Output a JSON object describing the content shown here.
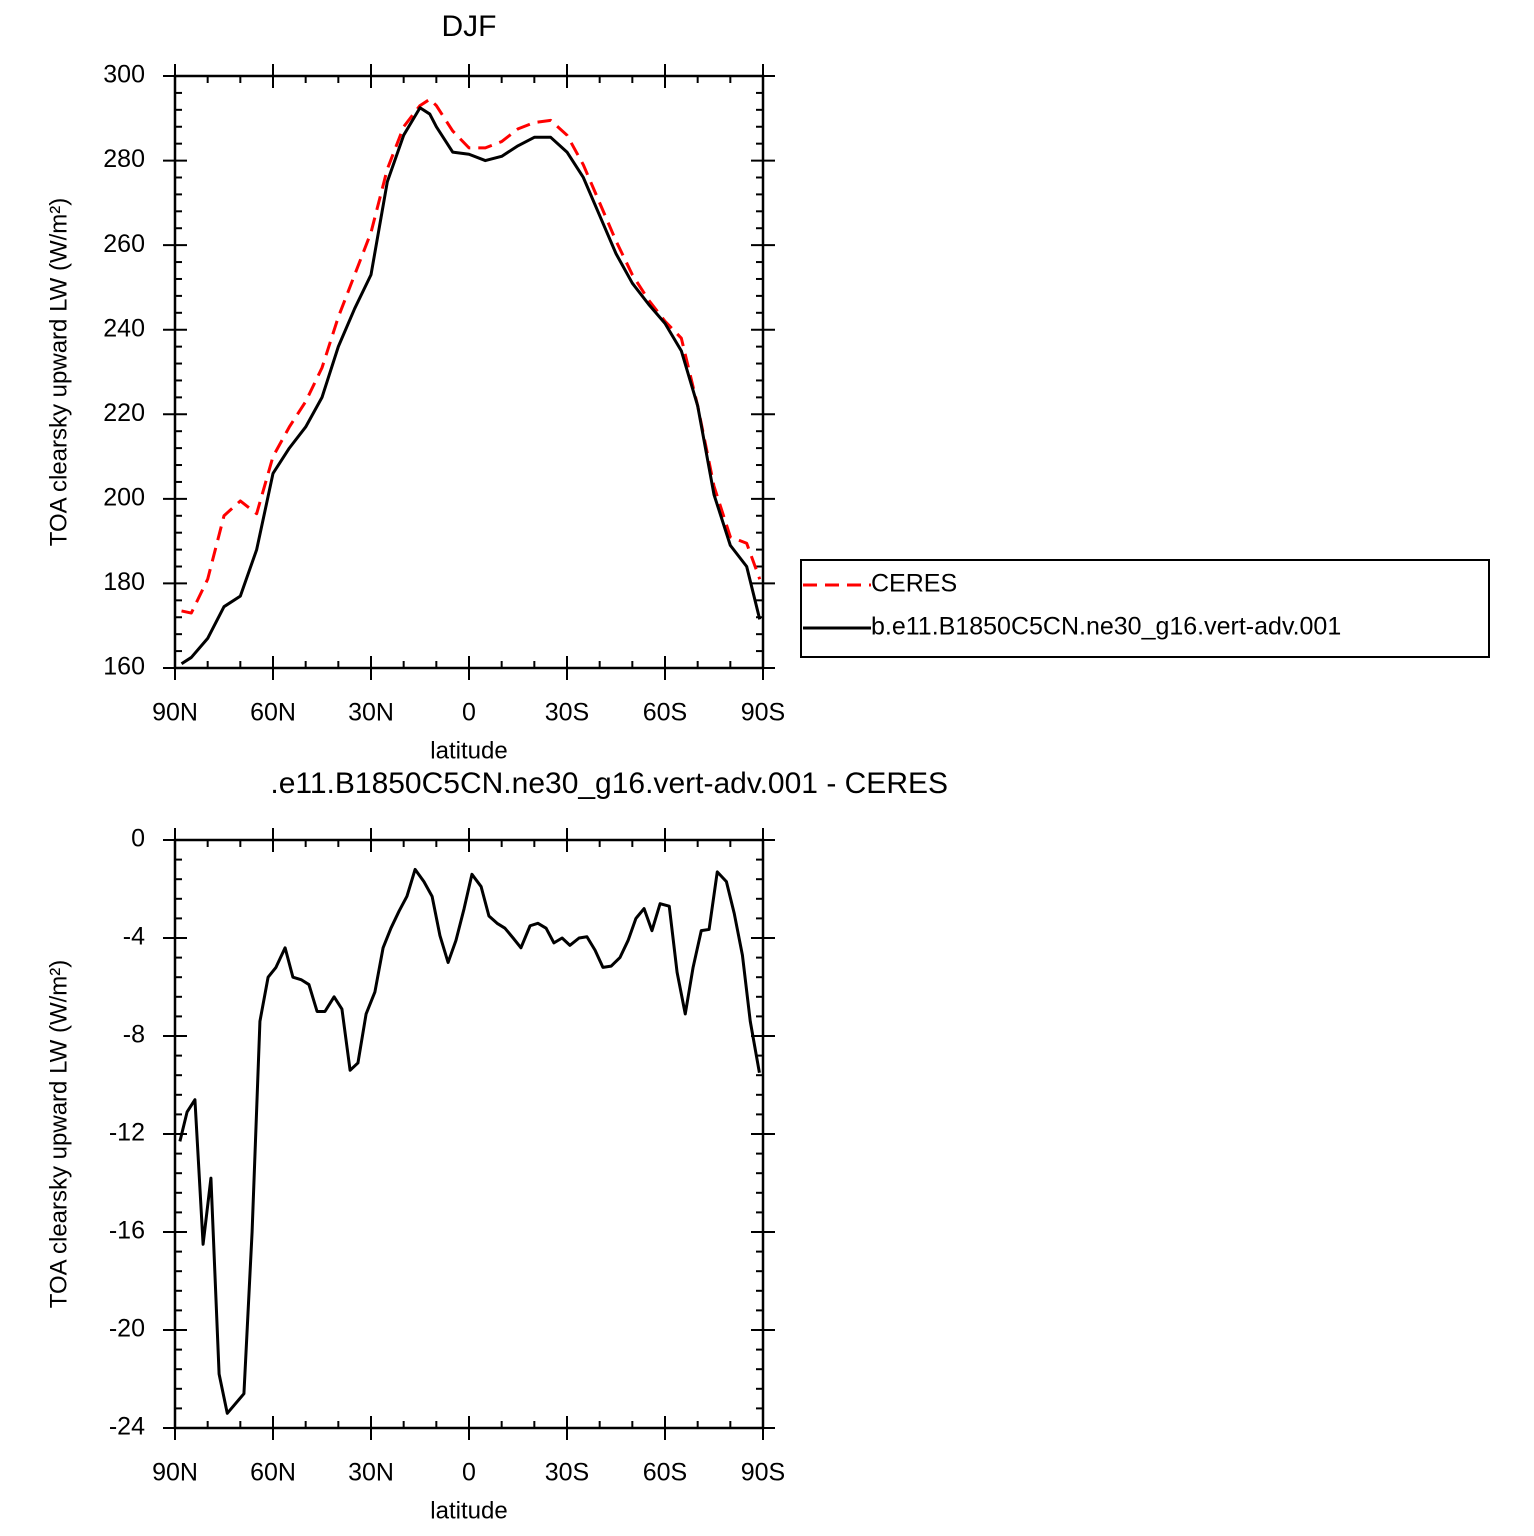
{
  "chart_data": [
    {
      "type": "line",
      "title": "DJF",
      "x_label": "latitude",
      "y_label": "TOA clearsky upward LW (W/m²)",
      "x": [
        88,
        85,
        80,
        75,
        70,
        65,
        60,
        55,
        50,
        45,
        40,
        35,
        30,
        25,
        20,
        15,
        12,
        10,
        5,
        0,
        -5,
        -10,
        -15,
        -20,
        -25,
        -30,
        -35,
        -40,
        -45,
        -50,
        -55,
        -60,
        -65,
        -70,
        -75,
        -80,
        -85,
        -89
      ],
      "series": [
        {
          "name": "CERES",
          "color": "#ff0000",
          "linestyle": "dashed",
          "values": [
            173.5,
            173,
            181,
            196,
            199.5,
            196.5,
            210,
            217,
            223,
            231,
            243,
            253,
            263,
            278,
            288,
            293,
            294.5,
            293,
            287,
            283,
            283,
            284.5,
            287.5,
            289,
            289.5,
            286,
            279,
            270,
            261,
            253,
            247,
            242,
            238,
            222,
            203,
            191,
            189.5,
            181
          ]
        },
        {
          "name": "b.e11.B1850C5CN.ne30_g16.vert-adv.001",
          "color": "#000000",
          "linestyle": "solid",
          "values": [
            161,
            162.5,
            167,
            174.5,
            177,
            188,
            206,
            212,
            217,
            224,
            236,
            245,
            253,
            275,
            286,
            292.5,
            291,
            288,
            282,
            281.5,
            280,
            281,
            283.5,
            285.5,
            285.5,
            282,
            276,
            267,
            258,
            251,
            246,
            241.5,
            235,
            222,
            201,
            189,
            184,
            171.5
          ]
        }
      ],
      "xlim": [
        90,
        -90
      ],
      "xticks": [
        {
          "value": 90,
          "label": "90N"
        },
        {
          "value": 60,
          "label": "60N"
        },
        {
          "value": 30,
          "label": "30N"
        },
        0,
        {
          "value": -30,
          "label": "30S"
        },
        {
          "value": -60,
          "label": "60S"
        },
        {
          "value": -90,
          "label": "90S"
        }
      ],
      "ylim": [
        160,
        300
      ],
      "yticks": [
        160,
        180,
        200,
        220,
        240,
        260,
        280,
        300
      ],
      "legend": "right",
      "grid": false
    },
    {
      "type": "line",
      "title": ".e11.B1850C5CN.ne30_g16.vert-adv.001 - CERES",
      "x_label": "latitude",
      "y_label": "TOA clearsky upward LW (W/m²)",
      "x": [
        88.5,
        86.3,
        83.9,
        81.4,
        79,
        76.5,
        74,
        68.9,
        66.4,
        64,
        61.5,
        59.1,
        56.3,
        53.9,
        51.4,
        49,
        46.5,
        44.1,
        41.3,
        38.9,
        36.4,
        34,
        31.5,
        28.8,
        26.3,
        23.9,
        21.4,
        19,
        16.5,
        13.8,
        11.3,
        8.9,
        6.4,
        4,
        1.5,
        -0.9,
        -3.7,
        -6.1,
        -8.6,
        -11,
        -13.5,
        -15.9,
        -18.7,
        -21.1,
        -23.6,
        -26,
        -28.5,
        -30.9,
        -33.7,
        -36.1,
        -38.6,
        -41,
        -43.5,
        -46.2,
        -48.7,
        -51.1,
        -53.6,
        -56,
        -58.5,
        -61.3,
        -63.7,
        -66.2,
        -68.6,
        -71.1,
        -73.5,
        -76,
        -78.8,
        -81.2,
        -83.7,
        -86.1,
        -88.9
      ],
      "values": [
        -12.3,
        -11.1,
        -10.6,
        -16.5,
        -13.8,
        -21.8,
        -23.4,
        -22.6,
        -16,
        -7.4,
        -5.6,
        -5.2,
        -4.4,
        -5.6,
        -5.7,
        -5.9,
        -7,
        -7,
        -6.4,
        -6.9,
        -9.4,
        -9.1,
        -7.1,
        -6.2,
        -4.4,
        -3.6,
        -2.9,
        -2.3,
        -1.2,
        -1.7,
        -2.3,
        -3.9,
        -5,
        -4.1,
        -2.8,
        -1.4,
        -1.9,
        -3.1,
        -3.4,
        -3.6,
        -4,
        -4.4,
        -3.5,
        -3.4,
        -3.6,
        -4.2,
        -4,
        -4.3,
        -4,
        -3.95,
        -4.5,
        -5.2,
        -5.15,
        -4.8,
        -4.1,
        -3.2,
        -2.8,
        -3.7,
        -2.6,
        -2.7,
        -5.4,
        -7.1,
        -5.2,
        -3.7,
        -3.65,
        -1.3,
        -1.7,
        -3,
        -4.7,
        -7.4,
        -9.5
      ],
      "color": "#000000",
      "xlim": [
        90,
        -90
      ],
      "xticks": [
        {
          "value": 90,
          "label": "90N"
        },
        {
          "value": 60,
          "label": "60N"
        },
        {
          "value": 30,
          "label": "30N"
        },
        0,
        {
          "value": -30,
          "label": "30S"
        },
        {
          "value": -60,
          "label": "60S"
        },
        {
          "value": -90,
          "label": "90S"
        }
      ],
      "ylim": [
        -24,
        0
      ],
      "yticks": [
        -24,
        -20,
        -16,
        -12,
        -8,
        -4,
        0
      ],
      "grid": false
    }
  ]
}
